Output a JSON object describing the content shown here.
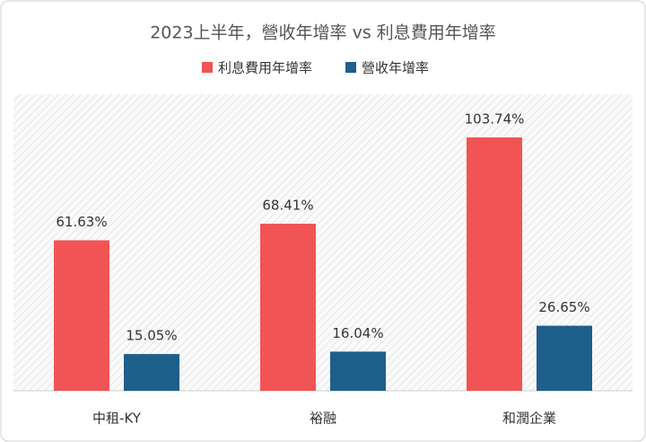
{
  "chart_data": {
    "type": "bar",
    "title": "2023上半年，營收年增率 vs 利息費用年增率",
    "categories": [
      "中租-KY",
      "裕融",
      "和潤企業"
    ],
    "series": [
      {
        "name": "利息費用年增率",
        "color": "#f05454",
        "values": [
          61.63,
          68.41,
          103.74
        ],
        "value_labels": [
          "61.63%",
          "68.41%",
          "103.74%"
        ]
      },
      {
        "name": "營收年增率",
        "color": "#1f5f8b",
        "values": [
          15.05,
          16.04,
          26.65
        ],
        "value_labels": [
          "15.05%",
          "16.04%",
          "26.65%"
        ]
      }
    ]
  }
}
